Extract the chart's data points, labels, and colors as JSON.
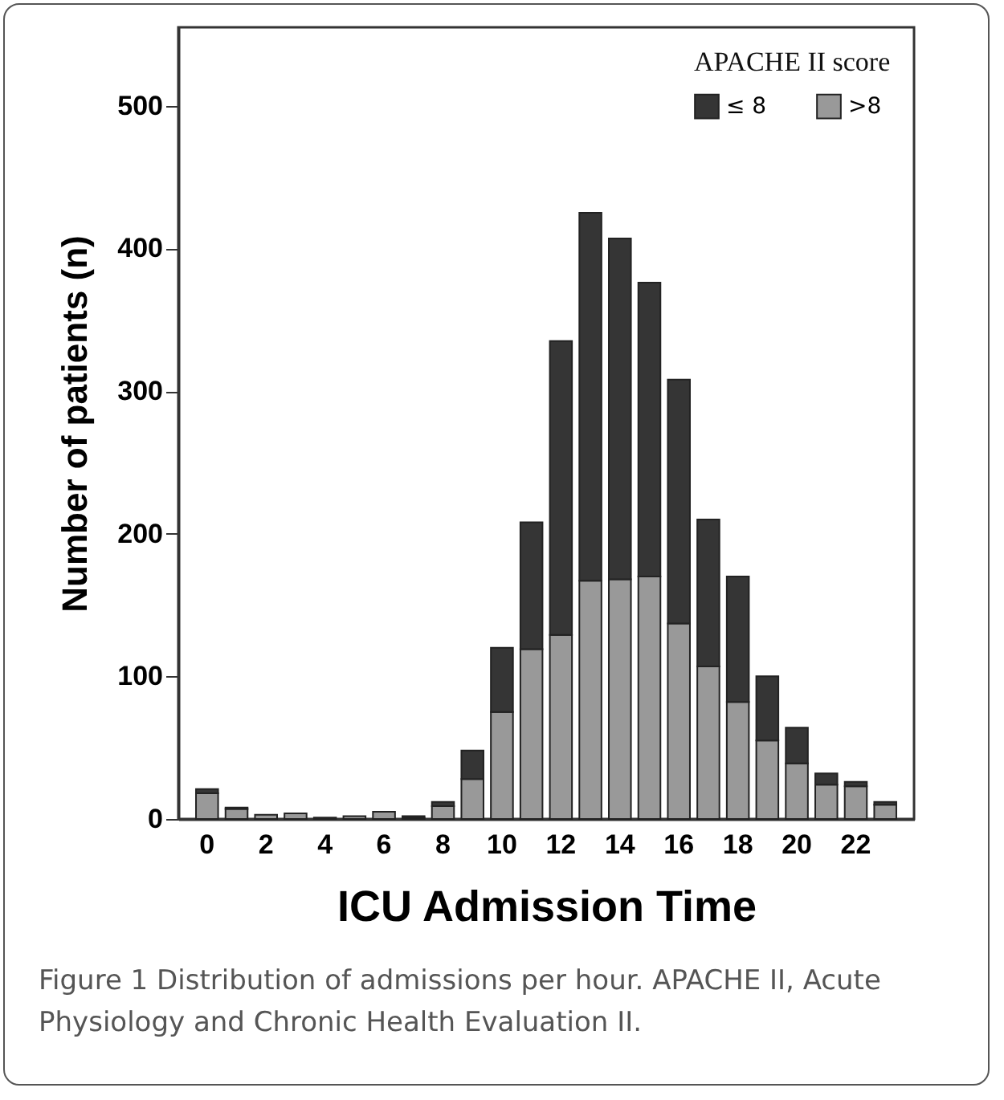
{
  "chart_data": {
    "type": "bar",
    "stacked": true,
    "categories": [
      "0",
      null,
      "2",
      null,
      "4",
      null,
      "6",
      null,
      "8",
      null,
      "10",
      null,
      "12",
      null,
      "14",
      null,
      "16",
      null,
      "18",
      null,
      "20",
      null,
      "22",
      null
    ],
    "series": [
      {
        "name": ">8",
        "color": "#999999",
        "values": [
          18,
          7,
          3,
          4,
          1,
          2,
          5,
          1,
          9,
          28,
          75,
          119,
          129,
          167,
          168,
          170,
          137,
          107,
          82,
          55,
          39,
          24,
          23,
          10
        ]
      },
      {
        "name": "≤ 8",
        "color": "#353535",
        "values": [
          3,
          1,
          0,
          0,
          0,
          0,
          0,
          1,
          3,
          20,
          45,
          89,
          206,
          258,
          239,
          206,
          171,
          103,
          88,
          45,
          25,
          8,
          3,
          2
        ]
      }
    ],
    "xlabel": "ICU Admission Time",
    "ylabel": "Number of patients (n)",
    "legend_title": "APACHE II score",
    "legend": "top right",
    "ylim": [
      0,
      555
    ],
    "yticks": [
      0,
      100,
      200,
      300,
      400,
      500
    ],
    "annotations": [
      "Figure 1 Distribution of admissions per hour. APACHE II, Acute Physiology and Chronic Health Evaluation II."
    ]
  }
}
